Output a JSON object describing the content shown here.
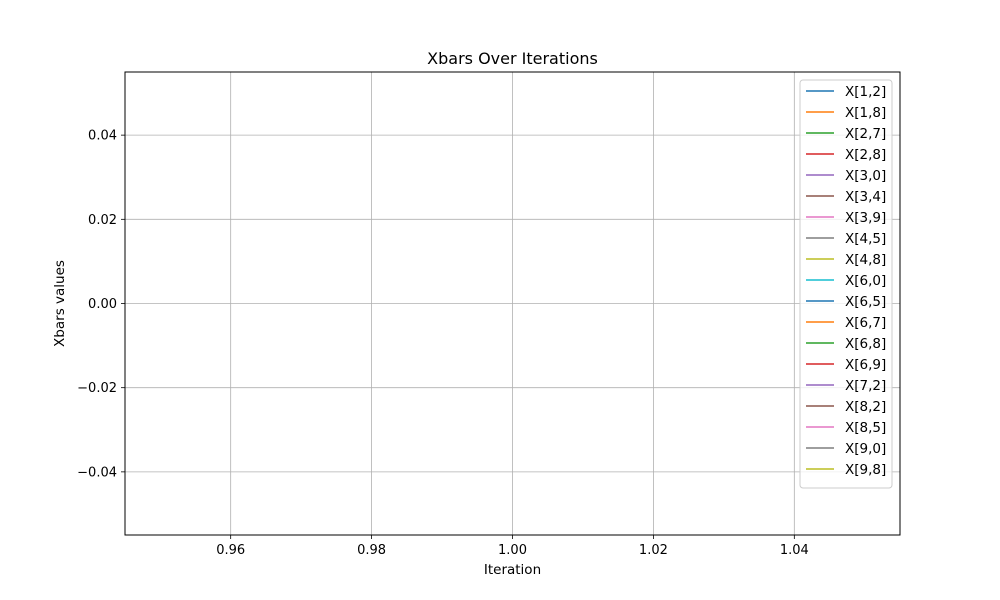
{
  "chart_data": {
    "type": "line",
    "title": "Xbars Over Iterations",
    "xlabel": "Iteration",
    "ylabel": "Xbars values",
    "xlim": [
      0.945,
      1.055
    ],
    "ylim": [
      -0.055,
      0.055
    ],
    "x_ticks": [
      0.96,
      0.98,
      1.0,
      1.02,
      1.04
    ],
    "x_tick_labels": [
      "0.96",
      "0.98",
      "1.00",
      "1.02",
      "1.04"
    ],
    "y_ticks": [
      -0.04,
      -0.02,
      0.0,
      0.02,
      0.04
    ],
    "y_tick_labels": [
      "−0.04",
      "−0.02",
      "0.00",
      "0.02",
      "0.04"
    ],
    "grid": true,
    "legend_position": "top-right",
    "series": [
      {
        "name": "X[1,2]",
        "color": "#1f77b4",
        "x": [
          1
        ],
        "y": [
          0
        ]
      },
      {
        "name": "X[1,8]",
        "color": "#ff7f0e",
        "x": [
          1
        ],
        "y": [
          0
        ]
      },
      {
        "name": "X[2,7]",
        "color": "#2ca02c",
        "x": [
          1
        ],
        "y": [
          0
        ]
      },
      {
        "name": "X[2,8]",
        "color": "#d62728",
        "x": [
          1
        ],
        "y": [
          0
        ]
      },
      {
        "name": "X[3,0]",
        "color": "#9467bd",
        "x": [
          1
        ],
        "y": [
          0
        ]
      },
      {
        "name": "X[3,4]",
        "color": "#8c564b",
        "x": [
          1
        ],
        "y": [
          0
        ]
      },
      {
        "name": "X[3,9]",
        "color": "#e377c2",
        "x": [
          1
        ],
        "y": [
          0
        ]
      },
      {
        "name": "X[4,5]",
        "color": "#7f7f7f",
        "x": [
          1
        ],
        "y": [
          0
        ]
      },
      {
        "name": "X[4,8]",
        "color": "#bcbd22",
        "x": [
          1
        ],
        "y": [
          0
        ]
      },
      {
        "name": "X[6,0]",
        "color": "#17becf",
        "x": [
          1
        ],
        "y": [
          0
        ]
      },
      {
        "name": "X[6,5]",
        "color": "#1f77b4",
        "x": [
          1
        ],
        "y": [
          0
        ]
      },
      {
        "name": "X[6,7]",
        "color": "#ff7f0e",
        "x": [
          1
        ],
        "y": [
          0
        ]
      },
      {
        "name": "X[6,8]",
        "color": "#2ca02c",
        "x": [
          1
        ],
        "y": [
          0
        ]
      },
      {
        "name": "X[6,9]",
        "color": "#d62728",
        "x": [
          1
        ],
        "y": [
          0
        ]
      },
      {
        "name": "X[7,2]",
        "color": "#9467bd",
        "x": [
          1
        ],
        "y": [
          0
        ]
      },
      {
        "name": "X[8,2]",
        "color": "#8c564b",
        "x": [
          1
        ],
        "y": [
          0
        ]
      },
      {
        "name": "X[8,5]",
        "color": "#e377c2",
        "x": [
          1
        ],
        "y": [
          0
        ]
      },
      {
        "name": "X[9,0]",
        "color": "#7f7f7f",
        "x": [
          1
        ],
        "y": [
          0
        ]
      },
      {
        "name": "X[9,8]",
        "color": "#bcbd22",
        "x": [
          1
        ],
        "y": [
          0
        ]
      }
    ]
  }
}
